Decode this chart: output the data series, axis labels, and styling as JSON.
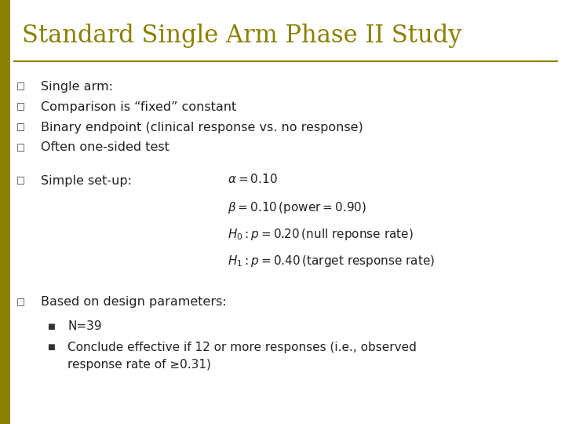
{
  "title": "Standard Single Arm Phase II Study",
  "title_color": "#8B8000",
  "title_fontsize": 22,
  "bg_color": "#FFFFFF",
  "left_bar_color": "#8B8000",
  "separator_color": "#8B8000",
  "bullet_color": "#333333",
  "text_color": "#222222",
  "bullet_char": "□",
  "sub_bullet_char": "■",
  "body_fontsize": 11.5,
  "math_fontsize": 11,
  "bullets": [
    "Single arm:",
    "Comparison is “fixed” constant",
    "Binary endpoint (clinical response vs. no response)",
    "Often one-sided test"
  ],
  "simple_setup_label": "Simple set-up:",
  "based_label": "Based on design parameters:",
  "sub_bullet1": "N=39",
  "sub_bullet2_line1": "Conclude effective if 12 or more responses (i.e., observed",
  "sub_bullet2_line2": "response rate of ≥0.31)"
}
